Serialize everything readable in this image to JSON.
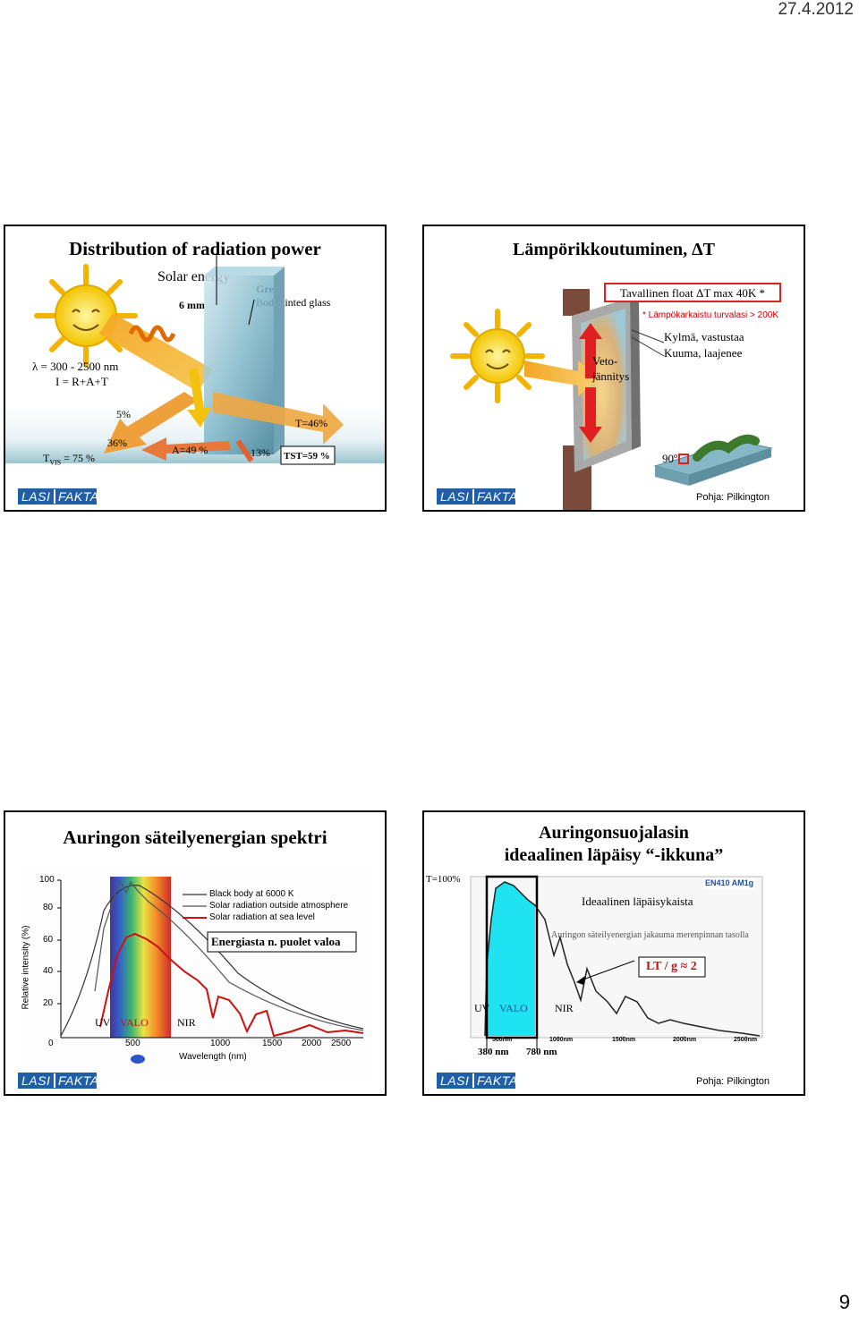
{
  "header": {
    "date": "27.4.2012"
  },
  "footer": {
    "page": "9"
  },
  "logo": {
    "part1": "LASI",
    "part2": "FAKTA"
  },
  "slide1": {
    "title": "Distribution of radiation power",
    "solar_energy": "Solar energy",
    "thickness": "6 mm",
    "glass_type": "Green",
    "glass_desc": "Body tinted glass",
    "lambda_line": "λ = 300 - 2500 nm",
    "intensity_line": "I = R+A+T",
    "reflect_pct": "5%",
    "t46": "T=46%",
    "reflect_vis": "36%",
    "absorb": "A=49 %",
    "reemit": "13%",
    "tst": "TST=59 %",
    "tvis_label": "T",
    "tvis_sub": "VIS",
    "tvis_value": "= 75 %"
  },
  "slide2": {
    "title": "Lämpörikkoutuminen, ΔT",
    "box": "Tavallinen float ΔT max 40K *",
    "note": "* Lämpökarkaistu turvalasi > 200K",
    "cold": "Kylmä, vastustaa",
    "warm": "Kuuma, laajenee",
    "stress1": "Veto-",
    "stress2": "jännitys",
    "angle": "90º",
    "source": "Pohja: Pilkington"
  },
  "slide3": {
    "title": "Auringon säteilyenergian spektri",
    "legend": [
      "Black body at 6000 K",
      "Solar radiation outside atmosphere",
      "Solar radiation at sea level"
    ],
    "energy_box": "Energiasta n. puolet valoa",
    "uv": "UV",
    "valo": "VALO",
    "nir": "NIR",
    "ylabel": "Relative intensity (%)",
    "xlabel": "Wavelength (nm)",
    "yticks": [
      "100",
      "80",
      "60",
      "40",
      "20"
    ],
    "xticks": [
      "0",
      "500",
      "1000",
      "1500",
      "2000",
      "2500"
    ]
  },
  "slide4": {
    "title1": "Auringonsuojalasin",
    "title2": "ideaalinen läpäisy “-ikkuna”",
    "t100": "T=100%",
    "badge": "EN410 AM1g",
    "ideal": "Ideaalinen läpäisykaista",
    "dist": "Auringon säteilyenergian jakauma merenpinnan tasolla",
    "ltg": "LT / g ≈ 2",
    "uv": "UV",
    "valo": "VALO",
    "nir": "NIR",
    "xticks": [
      "500nm",
      "1000nm",
      "1500nm",
      "2000nm",
      "2500nm"
    ],
    "nm380": "380 nm",
    "nm780": "780 nm",
    "source": "Pohja: Pilkington"
  }
}
